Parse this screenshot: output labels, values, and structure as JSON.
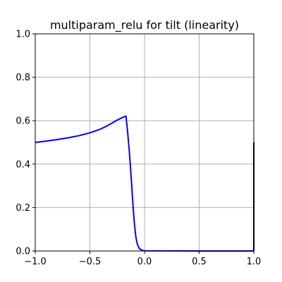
{
  "chart_data": {
    "type": "line",
    "title": "multiparam_relu for tilt (linearity)",
    "xlabel": "",
    "ylabel": "",
    "xlim": [
      -1.0,
      1.0
    ],
    "ylim": [
      0.0,
      1.0
    ],
    "grid": true,
    "xticks": [
      -1.0,
      -0.5,
      0.0,
      0.5,
      1.0
    ],
    "xtick_labels": [
      "−1.0",
      "−0.5",
      "0.0",
      "0.5",
      "1.0"
    ],
    "yticks": [
      0.0,
      0.2,
      0.4,
      0.6,
      0.8,
      1.0
    ],
    "ytick_labels": [
      "0.0",
      "0.2",
      "0.4",
      "0.6",
      "0.8",
      "1.0"
    ],
    "series": [
      {
        "color": "#0000ff",
        "x": [
          -1.0,
          -0.9,
          -0.8,
          -0.7,
          -0.6,
          -0.5,
          -0.4,
          -0.35,
          -0.3,
          -0.25,
          -0.2,
          -0.17,
          -0.16,
          -0.15,
          -0.14,
          -0.13,
          -0.12,
          -0.11,
          -0.1,
          -0.09,
          -0.08,
          -0.07,
          -0.06,
          -0.05,
          -0.04,
          -0.03,
          -0.02,
          -0.01,
          0.0,
          0.5,
          1.0
        ],
        "y": [
          0.5,
          0.506,
          0.513,
          0.521,
          0.531,
          0.544,
          0.562,
          0.574,
          0.588,
          0.603,
          0.615,
          0.621,
          0.575,
          0.522,
          0.462,
          0.396,
          0.322,
          0.245,
          0.172,
          0.112,
          0.068,
          0.04,
          0.024,
          0.014,
          0.008,
          0.005,
          0.003,
          0.002,
          0.001,
          0.0,
          0.0
        ]
      },
      {
        "color": "#000000",
        "x": [
          1.0,
          1.0
        ],
        "y": [
          0.0,
          0.5
        ]
      }
    ]
  }
}
